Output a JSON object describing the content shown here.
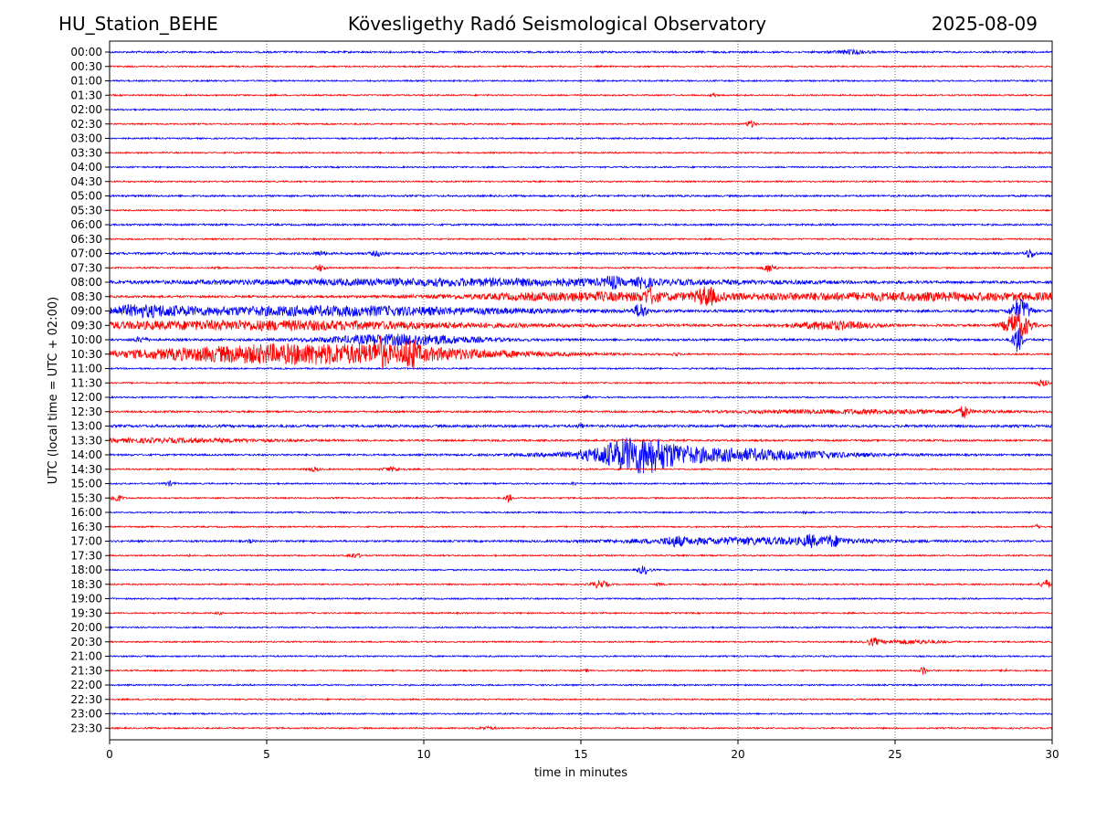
{
  "header": {
    "station": "HU_Station_BEHE",
    "observatory": "Kövesligethy Radó Seismological Observatory",
    "date": "2025-08-09"
  },
  "chart_data": {
    "type": "line",
    "title": "Kövesligethy Radó Seismological Observatory",
    "xlabel": "time in minutes",
    "ylabel": "UTC (local time = UTC + 02:00)",
    "xlim": [
      0,
      30
    ],
    "x_ticks": [
      "0",
      "5",
      "10",
      "15",
      "20",
      "25",
      "30"
    ],
    "x_tick_values": [
      0,
      5,
      10,
      15,
      20,
      25,
      30
    ],
    "grid": "vertical dotted",
    "trace_colors": [
      "#0000ff",
      "#ff0000"
    ],
    "rows": [
      {
        "label": "00:00",
        "noise": 0.25,
        "events": [
          [
            23.6,
            0.5,
            0.5
          ]
        ]
      },
      {
        "label": "00:30",
        "noise": 0.2,
        "events": []
      },
      {
        "label": "01:00",
        "noise": 0.2,
        "events": []
      },
      {
        "label": "01:30",
        "noise": 0.2,
        "events": [
          [
            19.2,
            0.1,
            0.5
          ]
        ]
      },
      {
        "label": "02:00",
        "noise": 0.2,
        "events": []
      },
      {
        "label": "02:30",
        "noise": 0.2,
        "events": [
          [
            20.4,
            0.15,
            0.9
          ]
        ]
      },
      {
        "label": "03:00",
        "noise": 0.2,
        "events": []
      },
      {
        "label": "03:30",
        "noise": 0.2,
        "events": []
      },
      {
        "label": "04:00",
        "noise": 0.2,
        "events": []
      },
      {
        "label": "04:30",
        "noise": 0.2,
        "events": []
      },
      {
        "label": "05:00",
        "noise": 0.25,
        "events": []
      },
      {
        "label": "05:30",
        "noise": 0.2,
        "events": []
      },
      {
        "label": "06:00",
        "noise": 0.25,
        "events": []
      },
      {
        "label": "06:30",
        "noise": 0.2,
        "events": []
      },
      {
        "label": "07:00",
        "noise": 0.3,
        "events": [
          [
            6.7,
            0.2,
            0.5
          ],
          [
            8.5,
            0.2,
            0.6
          ],
          [
            29.3,
            0.15,
            1.2
          ]
        ]
      },
      {
        "label": "07:30",
        "noise": 0.2,
        "events": [
          [
            3.4,
            0.1,
            0.4
          ],
          [
            6.7,
            0.15,
            0.9
          ],
          [
            21.0,
            0.2,
            1.1
          ]
        ]
      },
      {
        "label": "08:00",
        "noise": 0.3,
        "events": [
          [
            12.0,
            9.0,
            0.9
          ],
          [
            16.0,
            0.2,
            1.2
          ],
          [
            17.0,
            0.2,
            1.2
          ]
        ]
      },
      {
        "label": "08:30",
        "noise": 0.3,
        "events": [
          [
            15.0,
            4.0,
            0.9
          ],
          [
            17.2,
            0.2,
            1.5
          ],
          [
            19.0,
            0.3,
            2.0
          ],
          [
            26.0,
            8.0,
            1.0
          ]
        ]
      },
      {
        "label": "09:00",
        "noise": 0.35,
        "events": [
          [
            1.0,
            1.5,
            1.1
          ],
          [
            7.0,
            6.0,
            1.2
          ],
          [
            16.9,
            0.2,
            2.0
          ],
          [
            29.0,
            0.3,
            3.2
          ]
        ]
      },
      {
        "label": "09:30",
        "noise": 0.3,
        "events": [
          [
            5.0,
            7.0,
            1.2
          ],
          [
            23.0,
            1.2,
            1.1
          ],
          [
            28.9,
            0.4,
            3.5
          ]
        ]
      },
      {
        "label": "10:00",
        "noise": 0.3,
        "events": [
          [
            1.0,
            0.2,
            0.6
          ],
          [
            9.3,
            2.4,
            1.4
          ],
          [
            28.9,
            0.15,
            3.5
          ]
        ]
      },
      {
        "label": "10:30",
        "noise": 0.2,
        "events": [
          [
            6.5,
            5.6,
            2.8
          ],
          [
            8.6,
            0.2,
            2.5
          ],
          [
            9.6,
            0.2,
            2.8
          ],
          [
            18.0,
            0.1,
            0.5
          ]
        ]
      },
      {
        "label": "11:00",
        "noise": 0.2,
        "events": []
      },
      {
        "label": "11:30",
        "noise": 0.2,
        "events": [
          [
            29.7,
            0.2,
            0.8
          ]
        ]
      },
      {
        "label": "12:00",
        "noise": 0.2,
        "events": [
          [
            15.2,
            0.1,
            0.5
          ]
        ]
      },
      {
        "label": "12:30",
        "noise": 0.25,
        "events": [
          [
            24.0,
            4.0,
            0.5
          ],
          [
            27.2,
            0.15,
            1.3
          ]
        ]
      },
      {
        "label": "13:00",
        "noise": 0.35,
        "events": [
          [
            15.0,
            0.1,
            0.6
          ]
        ]
      },
      {
        "label": "13:30",
        "noise": 0.25,
        "events": [
          [
            2.0,
            3.0,
            0.5
          ]
        ]
      },
      {
        "label": "14:00",
        "noise": 0.25,
        "events": [
          [
            16.8,
            1.2,
            3.8
          ],
          [
            19.0,
            4.0,
            1.8
          ]
        ]
      },
      {
        "label": "14:30",
        "noise": 0.2,
        "events": [
          [
            6.5,
            0.2,
            0.5
          ],
          [
            9.0,
            0.3,
            0.5
          ]
        ]
      },
      {
        "label": "15:00",
        "noise": 0.2,
        "events": [
          [
            1.9,
            0.15,
            0.6
          ],
          [
            14.8,
            0.1,
            0.4
          ]
        ]
      },
      {
        "label": "15:30",
        "noise": 0.2,
        "events": [
          [
            0.2,
            0.2,
            1.0
          ],
          [
            12.7,
            0.1,
            1.2
          ]
        ]
      },
      {
        "label": "16:00",
        "noise": 0.2,
        "events": [
          [
            22.2,
            0.1,
            0.3
          ]
        ]
      },
      {
        "label": "16:30",
        "noise": 0.2,
        "events": [
          [
            29.5,
            0.1,
            0.4
          ]
        ]
      },
      {
        "label": "17:00",
        "noise": 0.25,
        "events": [
          [
            18.0,
            0.3,
            0.9
          ],
          [
            20.5,
            4.0,
            0.9
          ],
          [
            22.3,
            0.2,
            1.1
          ],
          [
            23.0,
            0.3,
            1.0
          ],
          [
            4.5,
            0.1,
            0.4
          ]
        ]
      },
      {
        "label": "17:30",
        "noise": 0.2,
        "events": [
          [
            7.8,
            0.2,
            0.6
          ],
          [
            2.5,
            0.1,
            0.3
          ]
        ]
      },
      {
        "label": "18:00",
        "noise": 0.2,
        "events": [
          [
            17.0,
            0.2,
            1.0
          ]
        ]
      },
      {
        "label": "18:30",
        "noise": 0.2,
        "events": [
          [
            15.6,
            0.25,
            1.0
          ],
          [
            17.5,
            0.1,
            0.4
          ],
          [
            29.8,
            0.15,
            1.2
          ]
        ]
      },
      {
        "label": "19:00",
        "noise": 0.2,
        "events": []
      },
      {
        "label": "19:30",
        "noise": 0.2,
        "events": [
          [
            3.5,
            0.1,
            0.3
          ]
        ]
      },
      {
        "label": "20:00",
        "noise": 0.2,
        "events": []
      },
      {
        "label": "20:30",
        "noise": 0.2,
        "events": [
          [
            24.3,
            0.2,
            0.9
          ],
          [
            25.5,
            1.0,
            0.5
          ]
        ]
      },
      {
        "label": "21:00",
        "noise": 0.2,
        "events": []
      },
      {
        "label": "21:30",
        "noise": 0.2,
        "events": [
          [
            25.9,
            0.1,
            1.2
          ],
          [
            28.5,
            0.1,
            0.3
          ],
          [
            15.2,
            0.1,
            0.3
          ]
        ]
      },
      {
        "label": "22:00",
        "noise": 0.2,
        "events": []
      },
      {
        "label": "22:30",
        "noise": 0.2,
        "events": []
      },
      {
        "label": "23:00",
        "noise": 0.2,
        "events": []
      },
      {
        "label": "23:30",
        "noise": 0.2,
        "events": [
          [
            12.0,
            0.3,
            0.3
          ]
        ]
      }
    ]
  }
}
